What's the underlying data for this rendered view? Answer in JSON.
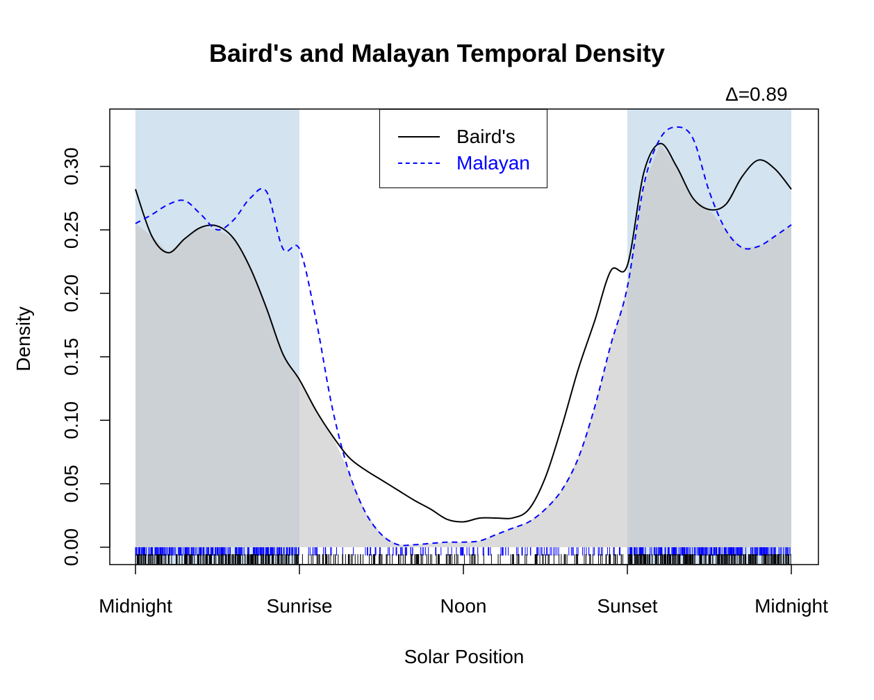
{
  "chart_data": {
    "type": "area",
    "title": "Baird's and Malayan Temporal Density",
    "annotation": "Δ=0.89",
    "xlabel": "Solar Position",
    "ylabel": "Density",
    "xlim": [
      0,
      4
    ],
    "ylim": [
      -0.01,
      0.34
    ],
    "x_ticks": [
      {
        "value": 0,
        "label": "Midnight"
      },
      {
        "value": 1,
        "label": "Sunrise"
      },
      {
        "value": 2,
        "label": "Noon"
      },
      {
        "value": 3,
        "label": "Sunset"
      },
      {
        "value": 4,
        "label": "Midnight"
      }
    ],
    "y_ticks": [
      "0.00",
      "0.05",
      "0.10",
      "0.15",
      "0.20",
      "0.25",
      "0.30"
    ],
    "shaded_night_intervals": [
      [
        0,
        1
      ],
      [
        3,
        4
      ]
    ],
    "overlap_fill_color": "#c8c8c8",
    "night_fill_color": "#d3e3f0",
    "legend": {
      "position": "top-center",
      "entries": [
        {
          "label": "Baird's",
          "color": "#000000",
          "dash": "solid"
        },
        {
          "label": "Malayan",
          "color": "#0000ff",
          "dash": "dashed"
        }
      ]
    },
    "series": [
      {
        "name": "Baird's",
        "color": "#000000",
        "dash": "solid",
        "x": [
          0,
          0.1,
          0.2,
          0.3,
          0.4,
          0.5,
          0.6,
          0.7,
          0.8,
          0.9,
          1.0,
          1.1,
          1.2,
          1.3,
          1.4,
          1.5,
          1.6,
          1.7,
          1.8,
          1.9,
          2.0,
          2.1,
          2.2,
          2.3,
          2.4,
          2.5,
          2.6,
          2.7,
          2.8,
          2.9,
          3.0,
          3.1,
          3.2,
          3.3,
          3.4,
          3.5,
          3.6,
          3.7,
          3.8,
          3.9,
          4.0
        ],
        "y": [
          0.282,
          0.245,
          0.232,
          0.243,
          0.252,
          0.253,
          0.243,
          0.22,
          0.188,
          0.152,
          0.132,
          0.108,
          0.088,
          0.071,
          0.061,
          0.053,
          0.045,
          0.037,
          0.03,
          0.022,
          0.02,
          0.023,
          0.023,
          0.023,
          0.03,
          0.055,
          0.095,
          0.14,
          0.178,
          0.218,
          0.222,
          0.295,
          0.318,
          0.3,
          0.275,
          0.266,
          0.27,
          0.292,
          0.305,
          0.298,
          0.282
        ]
      },
      {
        "name": "Malayan",
        "color": "#0000ff",
        "dash": "dashed",
        "x": [
          0,
          0.1,
          0.2,
          0.3,
          0.4,
          0.5,
          0.6,
          0.7,
          0.8,
          0.9,
          1.0,
          1.1,
          1.2,
          1.3,
          1.4,
          1.5,
          1.6,
          1.7,
          1.8,
          1.9,
          2.0,
          2.1,
          2.2,
          2.3,
          2.4,
          2.5,
          2.6,
          2.7,
          2.8,
          2.9,
          3.0,
          3.1,
          3.2,
          3.3,
          3.4,
          3.5,
          3.6,
          3.7,
          3.8,
          3.9,
          4.0
        ],
        "y": [
          0.255,
          0.262,
          0.27,
          0.273,
          0.262,
          0.25,
          0.258,
          0.275,
          0.28,
          0.235,
          0.235,
          0.18,
          0.11,
          0.06,
          0.028,
          0.01,
          0.002,
          0.002,
          0.003,
          0.004,
          0.004,
          0.005,
          0.01,
          0.015,
          0.02,
          0.03,
          0.045,
          0.07,
          0.11,
          0.16,
          0.205,
          0.285,
          0.322,
          0.331,
          0.322,
          0.28,
          0.25,
          0.236,
          0.237,
          0.245,
          0.254
        ]
      }
    ]
  }
}
